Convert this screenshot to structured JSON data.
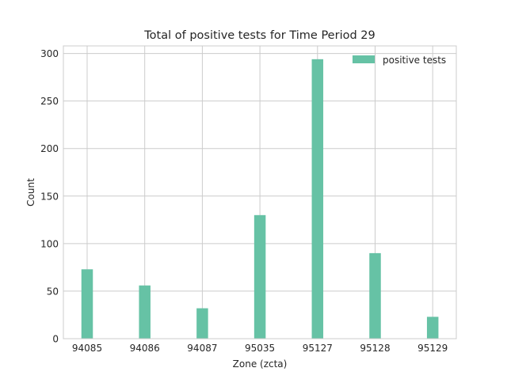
{
  "chart_data": {
    "type": "bar",
    "title": "Total of positive tests for Time Period 29",
    "xlabel": "Zone (zcta)",
    "ylabel": "Count",
    "categories": [
      "94085",
      "94086",
      "94087",
      "95035",
      "95127",
      "95128",
      "95129"
    ],
    "series": [
      {
        "name": "positive tests",
        "values": [
          73,
          56,
          32,
          130,
          294,
          90,
          23
        ],
        "color": "#66c2a5"
      }
    ],
    "ylim": [
      0,
      308
    ],
    "yticks": [
      0,
      50,
      100,
      150,
      200,
      250,
      300
    ],
    "grid": true,
    "legend_position": "top-right"
  }
}
